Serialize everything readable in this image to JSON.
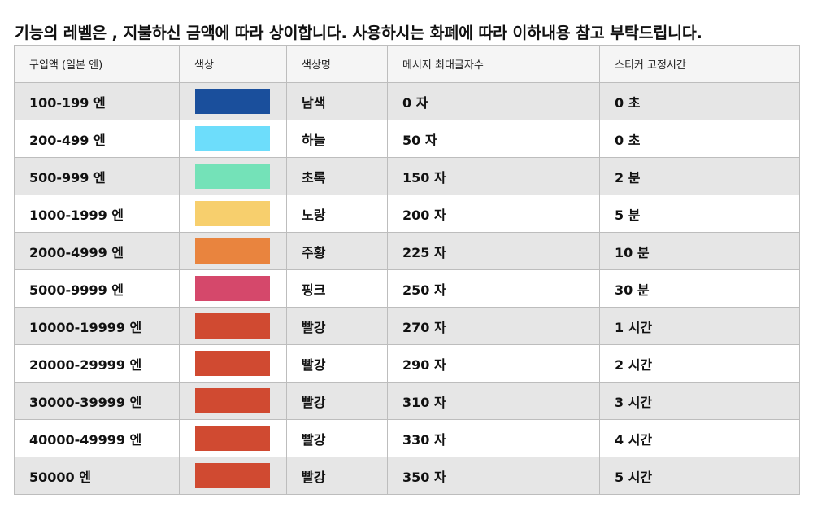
{
  "notice": "기능의 레벨은 , 지불하신 금액에 따라 상이합니다. 사용하시는 화폐에 따라 이하내용 참고 부탁드립니다.",
  "table": {
    "headers": [
      "구입액 (일본 엔)",
      "색상",
      "색상명",
      "메시지 최대글자수",
      "스티커 고정시간"
    ],
    "rows": [
      {
        "amount": "100-199 엔",
        "color": "#1a4f9c",
        "color_name": "남색",
        "max_chars": "0 자",
        "pin_time": "0 초"
      },
      {
        "amount": "200-499 엔",
        "color": "#6dddfb",
        "color_name": "하늘",
        "max_chars": "50 자",
        "pin_time": "0 초"
      },
      {
        "amount": "500-999 엔",
        "color": "#74e2b8",
        "color_name": "초록",
        "max_chars": "150 자",
        "pin_time": "2 분"
      },
      {
        "amount": "1000-1999 엔",
        "color": "#f7cf6d",
        "color_name": "노랑",
        "max_chars": "200 자",
        "pin_time": "5 분"
      },
      {
        "amount": "2000-4999 엔",
        "color": "#e9843e",
        "color_name": "주황",
        "max_chars": "225 자",
        "pin_time": "10 분"
      },
      {
        "amount": "5000-9999 엔",
        "color": "#d5486b",
        "color_name": "핑크",
        "max_chars": "250 자",
        "pin_time": "30 분"
      },
      {
        "amount": "10000-19999 엔",
        "color": "#d04a31",
        "color_name": "빨강",
        "max_chars": "270 자",
        "pin_time": "1 시간"
      },
      {
        "amount": "20000-29999 엔",
        "color": "#d04a31",
        "color_name": "빨강",
        "max_chars": "290 자",
        "pin_time": "2 시간"
      },
      {
        "amount": "30000-39999 엔",
        "color": "#d04a31",
        "color_name": "빨강",
        "max_chars": "310 자",
        "pin_time": "3 시간"
      },
      {
        "amount": "40000-49999 엔",
        "color": "#d04a31",
        "color_name": "빨강",
        "max_chars": "330 자",
        "pin_time": "4 시간"
      },
      {
        "amount": "50000 엔",
        "color": "#d04a31",
        "color_name": "빨강",
        "max_chars": "350 자",
        "pin_time": "5 시간"
      }
    ]
  }
}
